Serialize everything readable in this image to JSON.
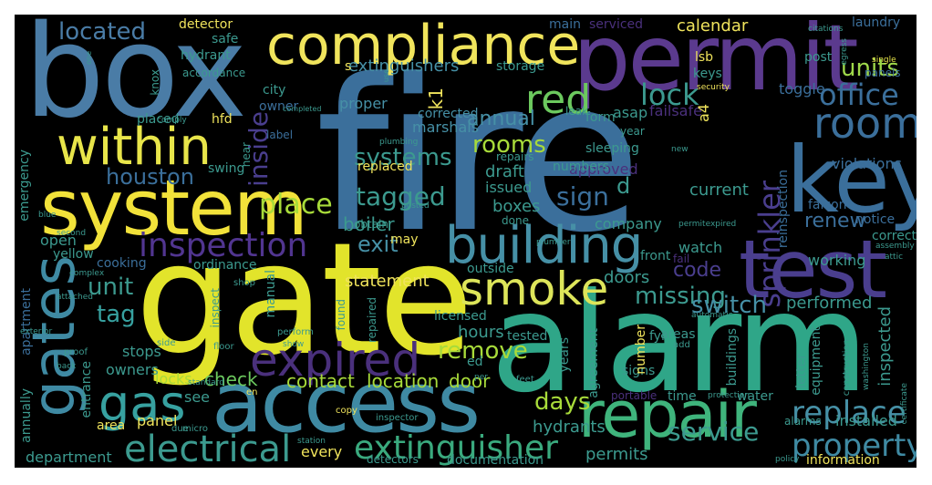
{
  "words": {
    "fire": "fire",
    "gate": "gate",
    "alarm": "alarm",
    "box": "box",
    "permit": "permit",
    "access": "access",
    "system": "system",
    "compliance": "compliance",
    "test": "test",
    "key": "key",
    "repair": "repair",
    "building": "building",
    "room": "room",
    "within": "within",
    "smoke": "smoke",
    "gates": "gates",
    "gas": "gas",
    "expired": "expired",
    "electrical": "electrical",
    "extinguisher": "extinguisher",
    "inspection": "inspection",
    "property": "property",
    "replace": "replace",
    "sprinkler": "sprinkler",
    "red": "red",
    "office": "office",
    "units": "units",
    "lock": "lock",
    "located": "located",
    "tagged": "tagged",
    "systems": "systems",
    "missing": "missing",
    "houston": "houston",
    "place": "place",
    "rooms": "rooms",
    "remove": "remove",
    "service": "service",
    "days": "days",
    "switch": "switch",
    "code": "code",
    "exit": "exit",
    "renew": "renew",
    "sign": "sign",
    "unit": "unit",
    "tag": "tag",
    "inside": "inside",
    "annual": "annual",
    "statement": "statement",
    "extinguishers": "extinguishers",
    "calendar": "calendar",
    "contact": "contact",
    "location": "location",
    "check": "check",
    "locks": "locks",
    "door": "door",
    "information": "information",
    "installed": "installed",
    "performed": "performed",
    "inspected": "inspected",
    "hours": "hours",
    "hydrants": "hydrants",
    "permits": "permits",
    "doors": "doors",
    "boiler": "boiler",
    "boxes": "boxes",
    "issued": "issued",
    "draft": "draft",
    "current": "current",
    "company": "company",
    "approved": "approved",
    "violations": "violations",
    "reinspection": "reinspection",
    "toggle": "toggle",
    "watch": "watch",
    "working": "working",
    "notice": "notice",
    "falcon": "falcon",
    "replaced": "replaced",
    "corrected": "corrected",
    "marshals": "marshals",
    "proper": "proper",
    "form": "form",
    "asap": "asap",
    "failsafe": "failsafe",
    "a4": "a4",
    "lsb": "lsb",
    "keys": "keys",
    "post": "post",
    "laundry": "laundry",
    "panels": "panels",
    "single": "single",
    "citations": "citations",
    "security": "security",
    "storage": "storage",
    "main": "main",
    "serviced": "serviced",
    "detector": "detector",
    "safe": "safe",
    "hydrant": "hydrant",
    "accordance": "accordance",
    "knox": "knox",
    "city": "city",
    "owner": "owner",
    "hfd": "hfd",
    "k1": "k1",
    "s": "s",
    "d": "d",
    "label": "label",
    "placed": "placed",
    "near": "near",
    "swing": "swing",
    "emergency": "emergency",
    "open": "open",
    "yellow": "yellow",
    "cooking": "cooking",
    "ordinance": "ordinance",
    "complex": "complex",
    "shop": "shop",
    "manual": "manual",
    "inspect": "inspect",
    "apartment": "apartment",
    "attached": "attached",
    "exterior": "exterior",
    "proof": "proof",
    "stops": "stops",
    "owners": "owners",
    "entrance": "entrance",
    "annually": "annually",
    "area": "area",
    "panel": "panel",
    "see": "see",
    "en": "en",
    "due": "due",
    "micro": "micro",
    "department": "department",
    "every": "every",
    "station": "station",
    "copy": "copy",
    "inspector": "inspector",
    "detectors": "detectors",
    "documentation": "documentation",
    "portable": "portable",
    "time": "time",
    "water": "water",
    "alarms": "alarms",
    "equipment": "equipment",
    "letter": "letter",
    "signs": "signs",
    "agreement": "agreement",
    "number": "number",
    "years": "years",
    "tested": "tested",
    "licensed": "licensed",
    "repaired": "repaired",
    "found": "found",
    "outside": "outside",
    "ed": "ed",
    "fyi": "fyi",
    "areas": "areas",
    "add": "add",
    "automatic": "automatic",
    "buildings": "buildings",
    "construction": "construction",
    "washington": "washington",
    "certificate": "certificate",
    "protection": "protection",
    "policy": "policy",
    "correct": "correct",
    "assembly": "assembly",
    "attic": "attic",
    "permitexpired": "permitexpired",
    "new": "new",
    "fail": "fail",
    "front": "front",
    "plumber": "plumber",
    "may": "may",
    "done": "done",
    "obtain": "obtain",
    "posted": "posted",
    "second": "second",
    "blue": "blue",
    "comply": "comply",
    "completed": "completed",
    "plumbing": "plumbing",
    "leak": "leak",
    "year": "year",
    "sleeping": "sleeping",
    "numbers": "numbers",
    "repairs": "repairs",
    "egress": "egress",
    "one": "one",
    "use": "use",
    "perform": "perform",
    "floor": "floor",
    "show": "show",
    "side": "side",
    "back": "back",
    "standard": "standard",
    "per": "per",
    "feet": "feet"
  },
  "colors": {
    "background": "#000000",
    "blue": "#3b528b",
    "steel": "#31688e",
    "teal": "#26828e",
    "cyan": "#1f9e89",
    "green": "#35b779",
    "lime": "#6ece58",
    "yellow": "#fde725",
    "purple": "#482878",
    "dark": "#440154"
  }
}
